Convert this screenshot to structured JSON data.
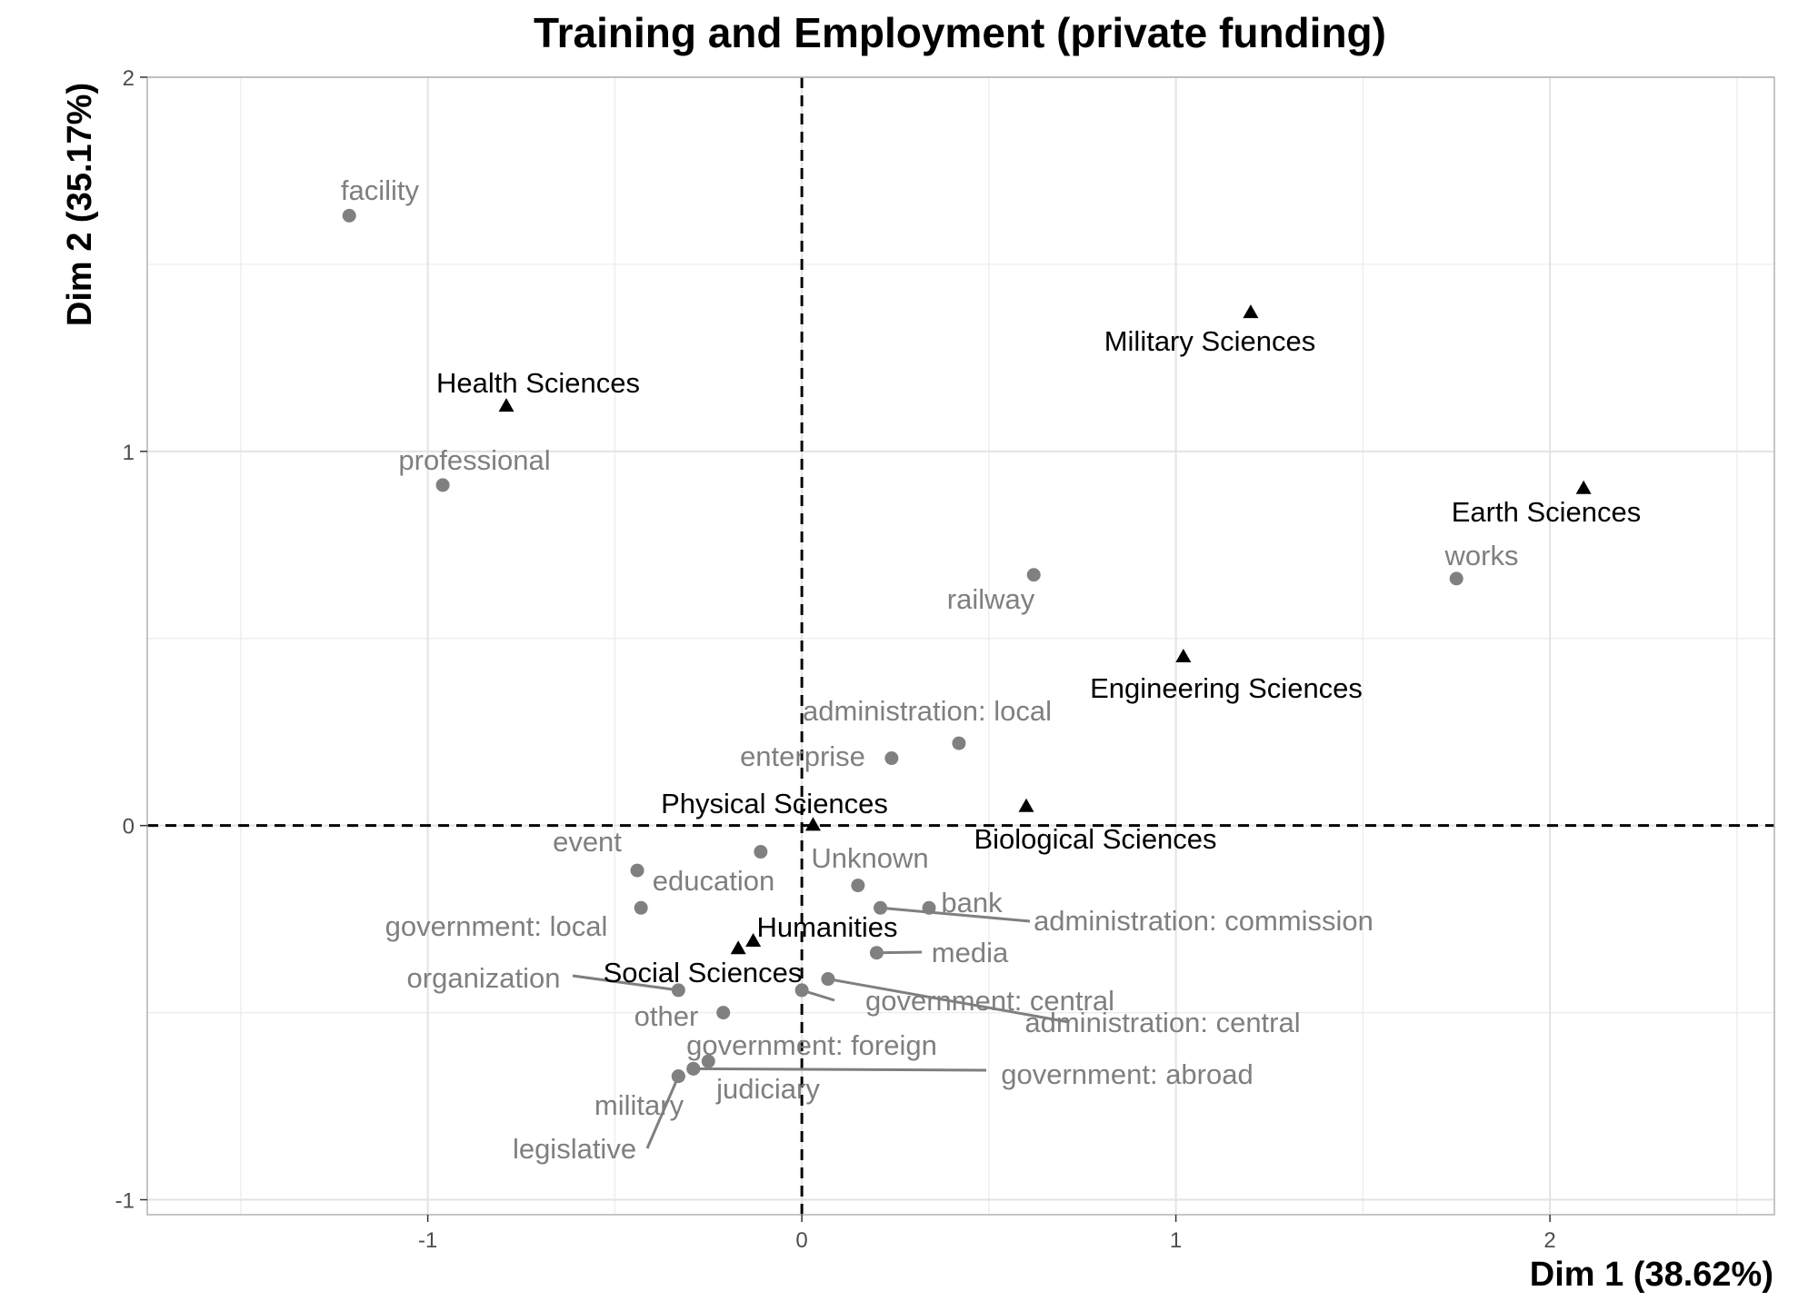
{
  "chart_data": {
    "type": "scatter",
    "title": "Training and Employment (private funding)",
    "xlabel": "Dim 1 (38.62%)",
    "ylabel": "Dim 2 (35.17%)",
    "xlim": [
      -1.75,
      2.6
    ],
    "ylim": [
      -1.04,
      2.0
    ],
    "xticks": [
      -1,
      0,
      1,
      2
    ],
    "yticks": [
      -1,
      0,
      1,
      2
    ],
    "xtick_labels": [
      "-1",
      "0",
      "1",
      "2"
    ],
    "ytick_labels": [
      "-1",
      "0",
      "1",
      "2"
    ],
    "grid": true,
    "reference_lines": {
      "x": 0,
      "y": 0,
      "style": "dashed"
    },
    "colors": {
      "row_points": "#808080",
      "col_points": "#000000",
      "grid": "#ebebeb",
      "panel_border": "#b3b3b3"
    },
    "series": [
      {
        "name": "",
        "marker": "circle",
        "color": "#808080",
        "points": [
          {
            "label": "facility",
            "x": -1.21,
            "y": 1.63
          },
          {
            "label": "professional",
            "x": -0.96,
            "y": 0.91
          },
          {
            "label": "railway",
            "x": 0.62,
            "y": 0.67
          },
          {
            "label": "works",
            "x": 1.75,
            "y": 0.66
          },
          {
            "label": "administration: local",
            "x": 0.42,
            "y": 0.22
          },
          {
            "label": "enterprise",
            "x": 0.24,
            "y": 0.18
          },
          {
            "label": "event",
            "x": -0.11,
            "y": -0.07
          },
          {
            "label": "Unknown",
            "x": 0.15,
            "y": -0.16
          },
          {
            "label": "education",
            "x": -0.44,
            "y": -0.12
          },
          {
            "label": "bank",
            "x": 0.34,
            "y": -0.22
          },
          {
            "label": "administration: commission",
            "x": 0.21,
            "y": -0.22
          },
          {
            "label": "government: local",
            "x": -0.43,
            "y": -0.22
          },
          {
            "label": "media",
            "x": 0.2,
            "y": -0.34
          },
          {
            "label": "organization",
            "x": -0.33,
            "y": -0.44
          },
          {
            "label": "administration: central",
            "x": 0.07,
            "y": -0.41
          },
          {
            "label": "government: central",
            "x": 0.0,
            "y": -0.44
          },
          {
            "label": "other",
            "x": -0.21,
            "y": -0.5
          },
          {
            "label": "government: foreign",
            "x": -0.25,
            "y": -0.63
          },
          {
            "label": "government: abroad",
            "x": -0.29,
            "y": -0.65
          },
          {
            "label": "judiciary",
            "x": -0.29,
            "y": -0.65
          },
          {
            "label": "military",
            "x": -0.33,
            "y": -0.67
          },
          {
            "label": "legislative",
            "x": -0.33,
            "y": -0.67
          }
        ]
      },
      {
        "name": "",
        "marker": "triangle",
        "color": "#000000",
        "points": [
          {
            "label": "Military Sciences",
            "x": 1.2,
            "y": 1.37
          },
          {
            "label": "Health Sciences",
            "x": -0.79,
            "y": 1.12
          },
          {
            "label": "Earth Sciences",
            "x": 2.09,
            "y": 0.9
          },
          {
            "label": "Engineering Sciences",
            "x": 1.02,
            "y": 0.45
          },
          {
            "label": "Biological Sciences",
            "x": 0.6,
            "y": 0.05
          },
          {
            "label": "Physical Sciences",
            "x": 0.03,
            "y": 0.0
          },
          {
            "label": "Humanities",
            "x": -0.13,
            "y": -0.31
          },
          {
            "label": "Social Sciences",
            "x": -0.17,
            "y": -0.33
          }
        ]
      }
    ]
  }
}
